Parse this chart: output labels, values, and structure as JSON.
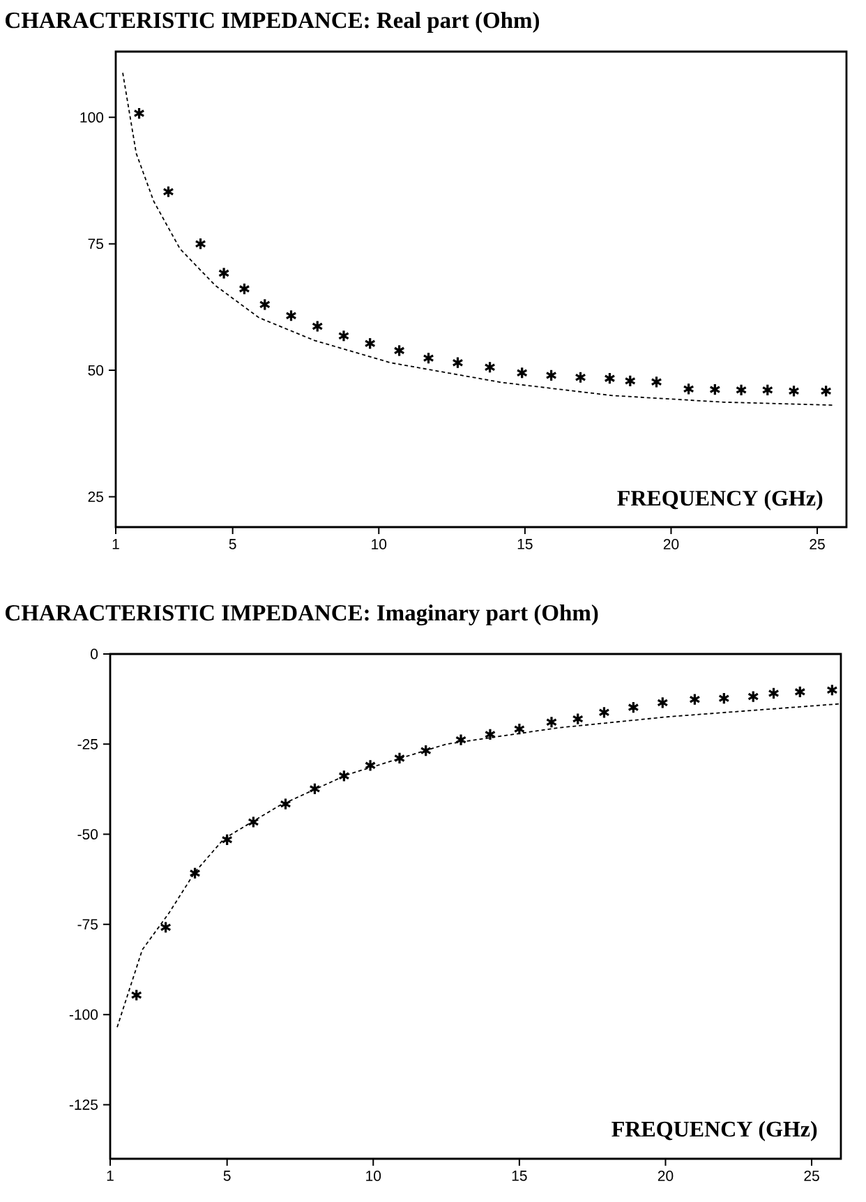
{
  "chart_data": [
    {
      "type": "scatter",
      "title": "CHARACTERISTIC IMPEDANCE: Real part (Ohm)",
      "xlabel": "FREQUENCY (GHz)",
      "xlim": [
        1,
        26
      ],
      "xticks": [
        1,
        5,
        10,
        15,
        20,
        25
      ],
      "ylim": [
        19,
        113
      ],
      "yticks": [
        25,
        50,
        75,
        100
      ],
      "series": [
        {
          "marker": "cross",
          "color": "#000000",
          "x": [
            1.8,
            2.8,
            3.9,
            4.7,
            5.4,
            6.1,
            7.0,
            7.9,
            8.8,
            9.7,
            10.7,
            11.7,
            12.7,
            13.8,
            14.9,
            15.9,
            16.9,
            17.9,
            18.6,
            19.5,
            20.6,
            21.5,
            22.4,
            23.3,
            24.2,
            25.3
          ],
          "values": [
            100.8,
            85.3,
            75.0,
            69.2,
            66.1,
            63.0,
            60.8,
            58.7,
            56.8,
            55.3,
            53.9,
            52.4,
            51.5,
            50.6,
            49.5,
            49.0,
            48.6,
            48.4,
            47.9,
            47.7,
            46.3,
            46.2,
            46.1,
            46.1,
            45.9,
            45.9
          ]
        },
        {
          "type": "line",
          "marker": "none",
          "line_style": "dashed",
          "color": "#000000",
          "x": [
            1.24,
            1.7,
            2.3,
            3.2,
            4.4,
            5.9,
            7.8,
            10.4,
            14.2,
            18.0,
            21.8,
            25.6
          ],
          "values": [
            108.8,
            92.9,
            83.4,
            74.0,
            66.8,
            60.4,
            55.9,
            51.5,
            47.6,
            45.0,
            43.7,
            43.1
          ]
        }
      ]
    },
    {
      "type": "scatter",
      "title": "CHARACTERISTIC IMPEDANCE: Imaginary part  (Ohm)",
      "xlabel": "FREQUENCY (GHz)",
      "xlim": [
        1,
        26
      ],
      "xticks": [
        1,
        5,
        10,
        15,
        20,
        25
      ],
      "ylim": [
        -140,
        0
      ],
      "yticks": [
        -125,
        -100,
        -75,
        -50,
        -25,
        0
      ],
      "series": [
        {
          "marker": "cross",
          "color": "#000000",
          "x": [
            1.9,
            2.9,
            3.9,
            5.0,
            5.9,
            7.0,
            8.0,
            9.0,
            9.9,
            10.9,
            11.8,
            13.0,
            14.0,
            15.0,
            16.1,
            17.0,
            17.9,
            18.9,
            19.9,
            21.0,
            22.0,
            23.0,
            23.7,
            24.6,
            25.7
          ],
          "values": [
            -94.6,
            -75.8,
            -60.8,
            -51.5,
            -46.6,
            -41.6,
            -37.4,
            -33.8,
            -30.9,
            -28.9,
            -26.8,
            -23.8,
            -22.3,
            -20.8,
            -18.9,
            -18.0,
            -16.2,
            -14.8,
            -13.5,
            -12.6,
            -12.3,
            -11.8,
            -10.9,
            -10.5,
            -10.0
          ]
        },
        {
          "type": "line",
          "marker": "none",
          "line_style": "dashed",
          "color": "#000000",
          "x": [
            1.24,
            2.1,
            3.0,
            3.9,
            4.9,
            6.8,
            9.1,
            12.5,
            16.3,
            20.1,
            26.0
          ],
          "values": [
            -103.5,
            -82.0,
            -72.0,
            -60.5,
            -51.2,
            -42.0,
            -33.5,
            -25.0,
            -20.5,
            -17.4,
            -13.8
          ]
        }
      ]
    }
  ]
}
